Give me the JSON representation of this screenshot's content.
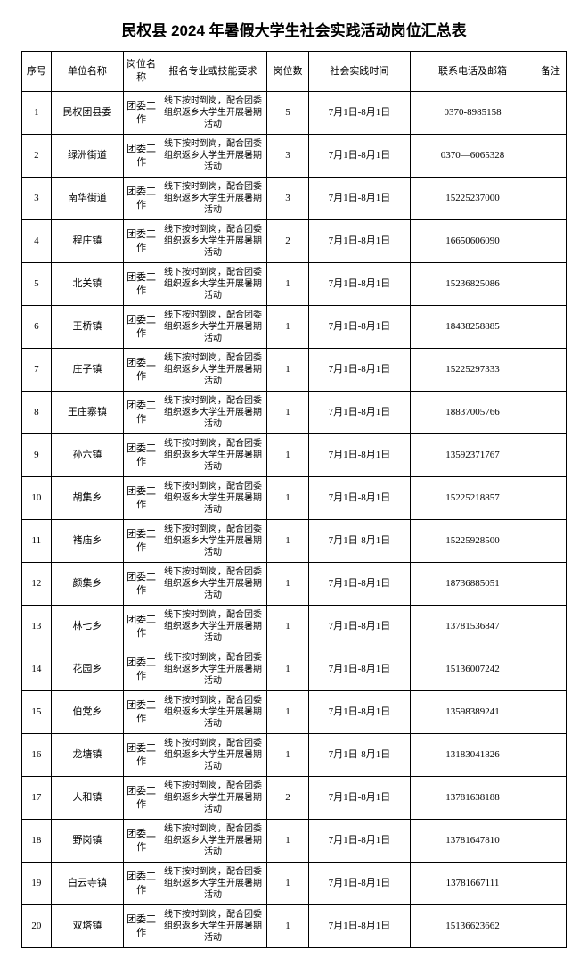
{
  "title": "民权县 2024 年暑假大学生社会实践活动岗位汇总表",
  "columns": [
    "序号",
    "单位名称",
    "岗位名称",
    "报名专业或技能要求",
    "岗位数",
    "社会实践时间",
    "联系电话及邮箱",
    "备注"
  ],
  "rows": [
    {
      "idx": "1",
      "unit": "民权团县委",
      "post": "团委工作",
      "req": "线下按时到岗，配合团委组织返乡大学生开展暑期活动",
      "cnt": "5",
      "time": "7月1日-8月1日",
      "tel": "0370-8985158",
      "note": ""
    },
    {
      "idx": "2",
      "unit": "绿洲街道",
      "post": "团委工作",
      "req": "线下按时到岗，配合团委组织返乡大学生开展暑期活动",
      "cnt": "3",
      "time": "7月1日-8月1日",
      "tel": "0370—6065328",
      "note": ""
    },
    {
      "idx": "3",
      "unit": "南华街道",
      "post": "团委工作",
      "req": "线下按时到岗，配合团委组织返乡大学生开展暑期活动",
      "cnt": "3",
      "time": "7月1日-8月1日",
      "tel": "15225237000",
      "note": ""
    },
    {
      "idx": "4",
      "unit": "程庄镇",
      "post": "团委工作",
      "req": "线下按时到岗，配合团委组织返乡大学生开展暑期活动",
      "cnt": "2",
      "time": "7月1日-8月1日",
      "tel": "16650606090",
      "note": ""
    },
    {
      "idx": "5",
      "unit": "北关镇",
      "post": "团委工作",
      "req": "线下按时到岗，配合团委组织返乡大学生开展暑期活动",
      "cnt": "1",
      "time": "7月1日-8月1日",
      "tel": "15236825086",
      "note": ""
    },
    {
      "idx": "6",
      "unit": "王桥镇",
      "post": "团委工作",
      "req": "线下按时到岗，配合团委组织返乡大学生开展暑期活动",
      "cnt": "1",
      "time": "7月1日-8月1日",
      "tel": "18438258885",
      "note": ""
    },
    {
      "idx": "7",
      "unit": "庄子镇",
      "post": "团委工作",
      "req": "线下按时到岗，配合团委组织返乡大学生开展暑期活动",
      "cnt": "1",
      "time": "7月1日-8月1日",
      "tel": "15225297333",
      "note": ""
    },
    {
      "idx": "8",
      "unit": "王庄寨镇",
      "post": "团委工作",
      "req": "线下按时到岗，配合团委组织返乡大学生开展暑期活动",
      "cnt": "1",
      "time": "7月1日-8月1日",
      "tel": "18837005766",
      "note": ""
    },
    {
      "idx": "9",
      "unit": "孙六镇",
      "post": "团委工作",
      "req": "线下按时到岗，配合团委组织返乡大学生开展暑期活动",
      "cnt": "1",
      "time": "7月1日-8月1日",
      "tel": "13592371767",
      "note": ""
    },
    {
      "idx": "10",
      "unit": "胡集乡",
      "post": "团委工作",
      "req": "线下按时到岗，配合团委组织返乡大学生开展暑期活动",
      "cnt": "1",
      "time": "7月1日-8月1日",
      "tel": "15225218857",
      "note": ""
    },
    {
      "idx": "11",
      "unit": "褚庙乡",
      "post": "团委工作",
      "req": "线下按时到岗，配合团委组织返乡大学生开展暑期活动",
      "cnt": "1",
      "time": "7月1日-8月1日",
      "tel": "15225928500",
      "note": ""
    },
    {
      "idx": "12",
      "unit": "颜集乡",
      "post": "团委工作",
      "req": "线下按时到岗，配合团委组织返乡大学生开展暑期活动",
      "cnt": "1",
      "time": "7月1日-8月1日",
      "tel": "18736885051",
      "note": ""
    },
    {
      "idx": "13",
      "unit": "林七乡",
      "post": "团委工作",
      "req": "线下按时到岗，配合团委组织返乡大学生开展暑期活动",
      "cnt": "1",
      "time": "7月1日-8月1日",
      "tel": "13781536847",
      "note": ""
    },
    {
      "idx": "14",
      "unit": "花园乡",
      "post": "团委工作",
      "req": "线下按时到岗，配合团委组织返乡大学生开展暑期活动",
      "cnt": "1",
      "time": "7月1日-8月1日",
      "tel": "15136007242",
      "note": ""
    },
    {
      "idx": "15",
      "unit": "伯党乡",
      "post": "团委工作",
      "req": "线下按时到岗，配合团委组织返乡大学生开展暑期活动",
      "cnt": "1",
      "time": "7月1日-8月1日",
      "tel": "13598389241",
      "note": ""
    },
    {
      "idx": "16",
      "unit": "龙塘镇",
      "post": "团委工作",
      "req": "线下按时到岗，配合团委组织返乡大学生开展暑期活动",
      "cnt": "1",
      "time": "7月1日-8月1日",
      "tel": "13183041826",
      "note": ""
    },
    {
      "idx": "17",
      "unit": "人和镇",
      "post": "团委工作",
      "req": "线下按时到岗，配合团委组织返乡大学生开展暑期活动",
      "cnt": "2",
      "time": "7月1日-8月1日",
      "tel": "13781638188",
      "note": ""
    },
    {
      "idx": "18",
      "unit": "野岗镇",
      "post": "团委工作",
      "req": "线下按时到岗，配合团委组织返乡大学生开展暑期活动",
      "cnt": "1",
      "time": "7月1日-8月1日",
      "tel": "13781647810",
      "note": ""
    },
    {
      "idx": "19",
      "unit": "白云寺镇",
      "post": "团委工作",
      "req": "线下按时到岗，配合团委组织返乡大学生开展暑期活动",
      "cnt": "1",
      "time": "7月1日-8月1日",
      "tel": "13781667111",
      "note": ""
    },
    {
      "idx": "20",
      "unit": "双塔镇",
      "post": "团委工作",
      "req": "线下按时到岗，配合团委组织返乡大学生开展暑期活动",
      "cnt": "1",
      "time": "7月1日-8月1日",
      "tel": "15136623662",
      "note": ""
    }
  ]
}
